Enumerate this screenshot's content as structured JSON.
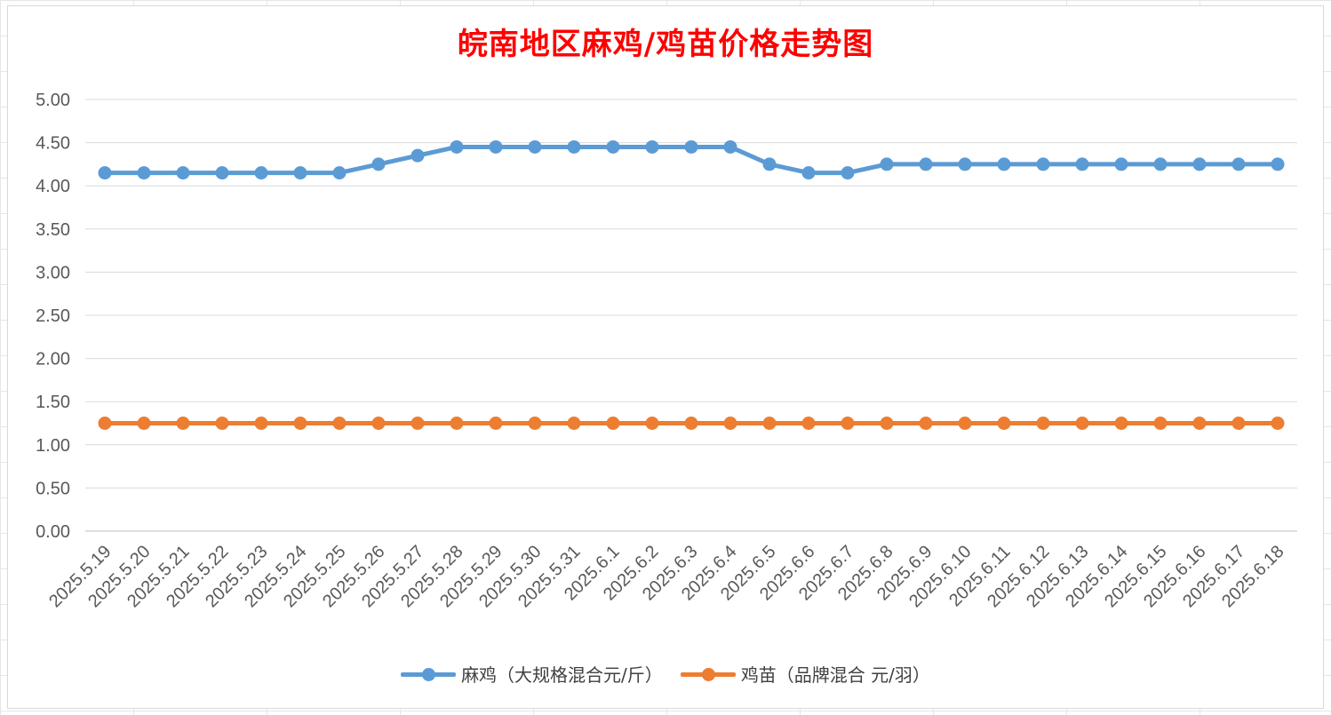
{
  "chart_data": {
    "type": "line",
    "title": "皖南地区麻鸡/鸡苗价格走势图",
    "title_color": "#ff0000",
    "categories": [
      "2025.5.19",
      "2025.5.20",
      "2025.5.21",
      "2025.5.22",
      "2025.5.23",
      "2025.5.24",
      "2025.5.25",
      "2025.5.26",
      "2025.5.27",
      "2025.5.28",
      "2025.5.29",
      "2025.5.30",
      "2025.5.31",
      "2025.6.1",
      "2025.6.2",
      "2025.6.3",
      "2025.6.4",
      "2025.6.5",
      "2025.6.6",
      "2025.6.7",
      "2025.6.8",
      "2025.6.9",
      "2025.6.10",
      "2025.6.11",
      "2025.6.12",
      "2025.6.13",
      "2025.6.14",
      "2025.6.15",
      "2025.6.16",
      "2025.6.17",
      "2025.6.18"
    ],
    "series": [
      {
        "name": "麻鸡（大规格混合元/斤）",
        "color": "#5b9bd5",
        "values": [
          4.15,
          4.15,
          4.15,
          4.15,
          4.15,
          4.15,
          4.15,
          4.25,
          4.35,
          4.45,
          4.45,
          4.45,
          4.45,
          4.45,
          4.45,
          4.45,
          4.45,
          4.25,
          4.15,
          4.15,
          4.25,
          4.25,
          4.25,
          4.25,
          4.25,
          4.25,
          4.25,
          4.25,
          4.25,
          4.25,
          4.25
        ]
      },
      {
        "name": "鸡苗（品牌混合 元/羽）",
        "color": "#ed7d31",
        "values": [
          1.25,
          1.25,
          1.25,
          1.25,
          1.25,
          1.25,
          1.25,
          1.25,
          1.25,
          1.25,
          1.25,
          1.25,
          1.25,
          1.25,
          1.25,
          1.25,
          1.25,
          1.25,
          1.25,
          1.25,
          1.25,
          1.25,
          1.25,
          1.25,
          1.25,
          1.25,
          1.25,
          1.25,
          1.25,
          1.25,
          1.25
        ]
      }
    ],
    "ylim": [
      0,
      5
    ],
    "yticks": [
      "0.00",
      "0.50",
      "1.00",
      "1.50",
      "2.00",
      "2.50",
      "3.00",
      "3.50",
      "4.00",
      "4.50",
      "5.00"
    ],
    "grid": true,
    "legend_position": "bottom"
  }
}
